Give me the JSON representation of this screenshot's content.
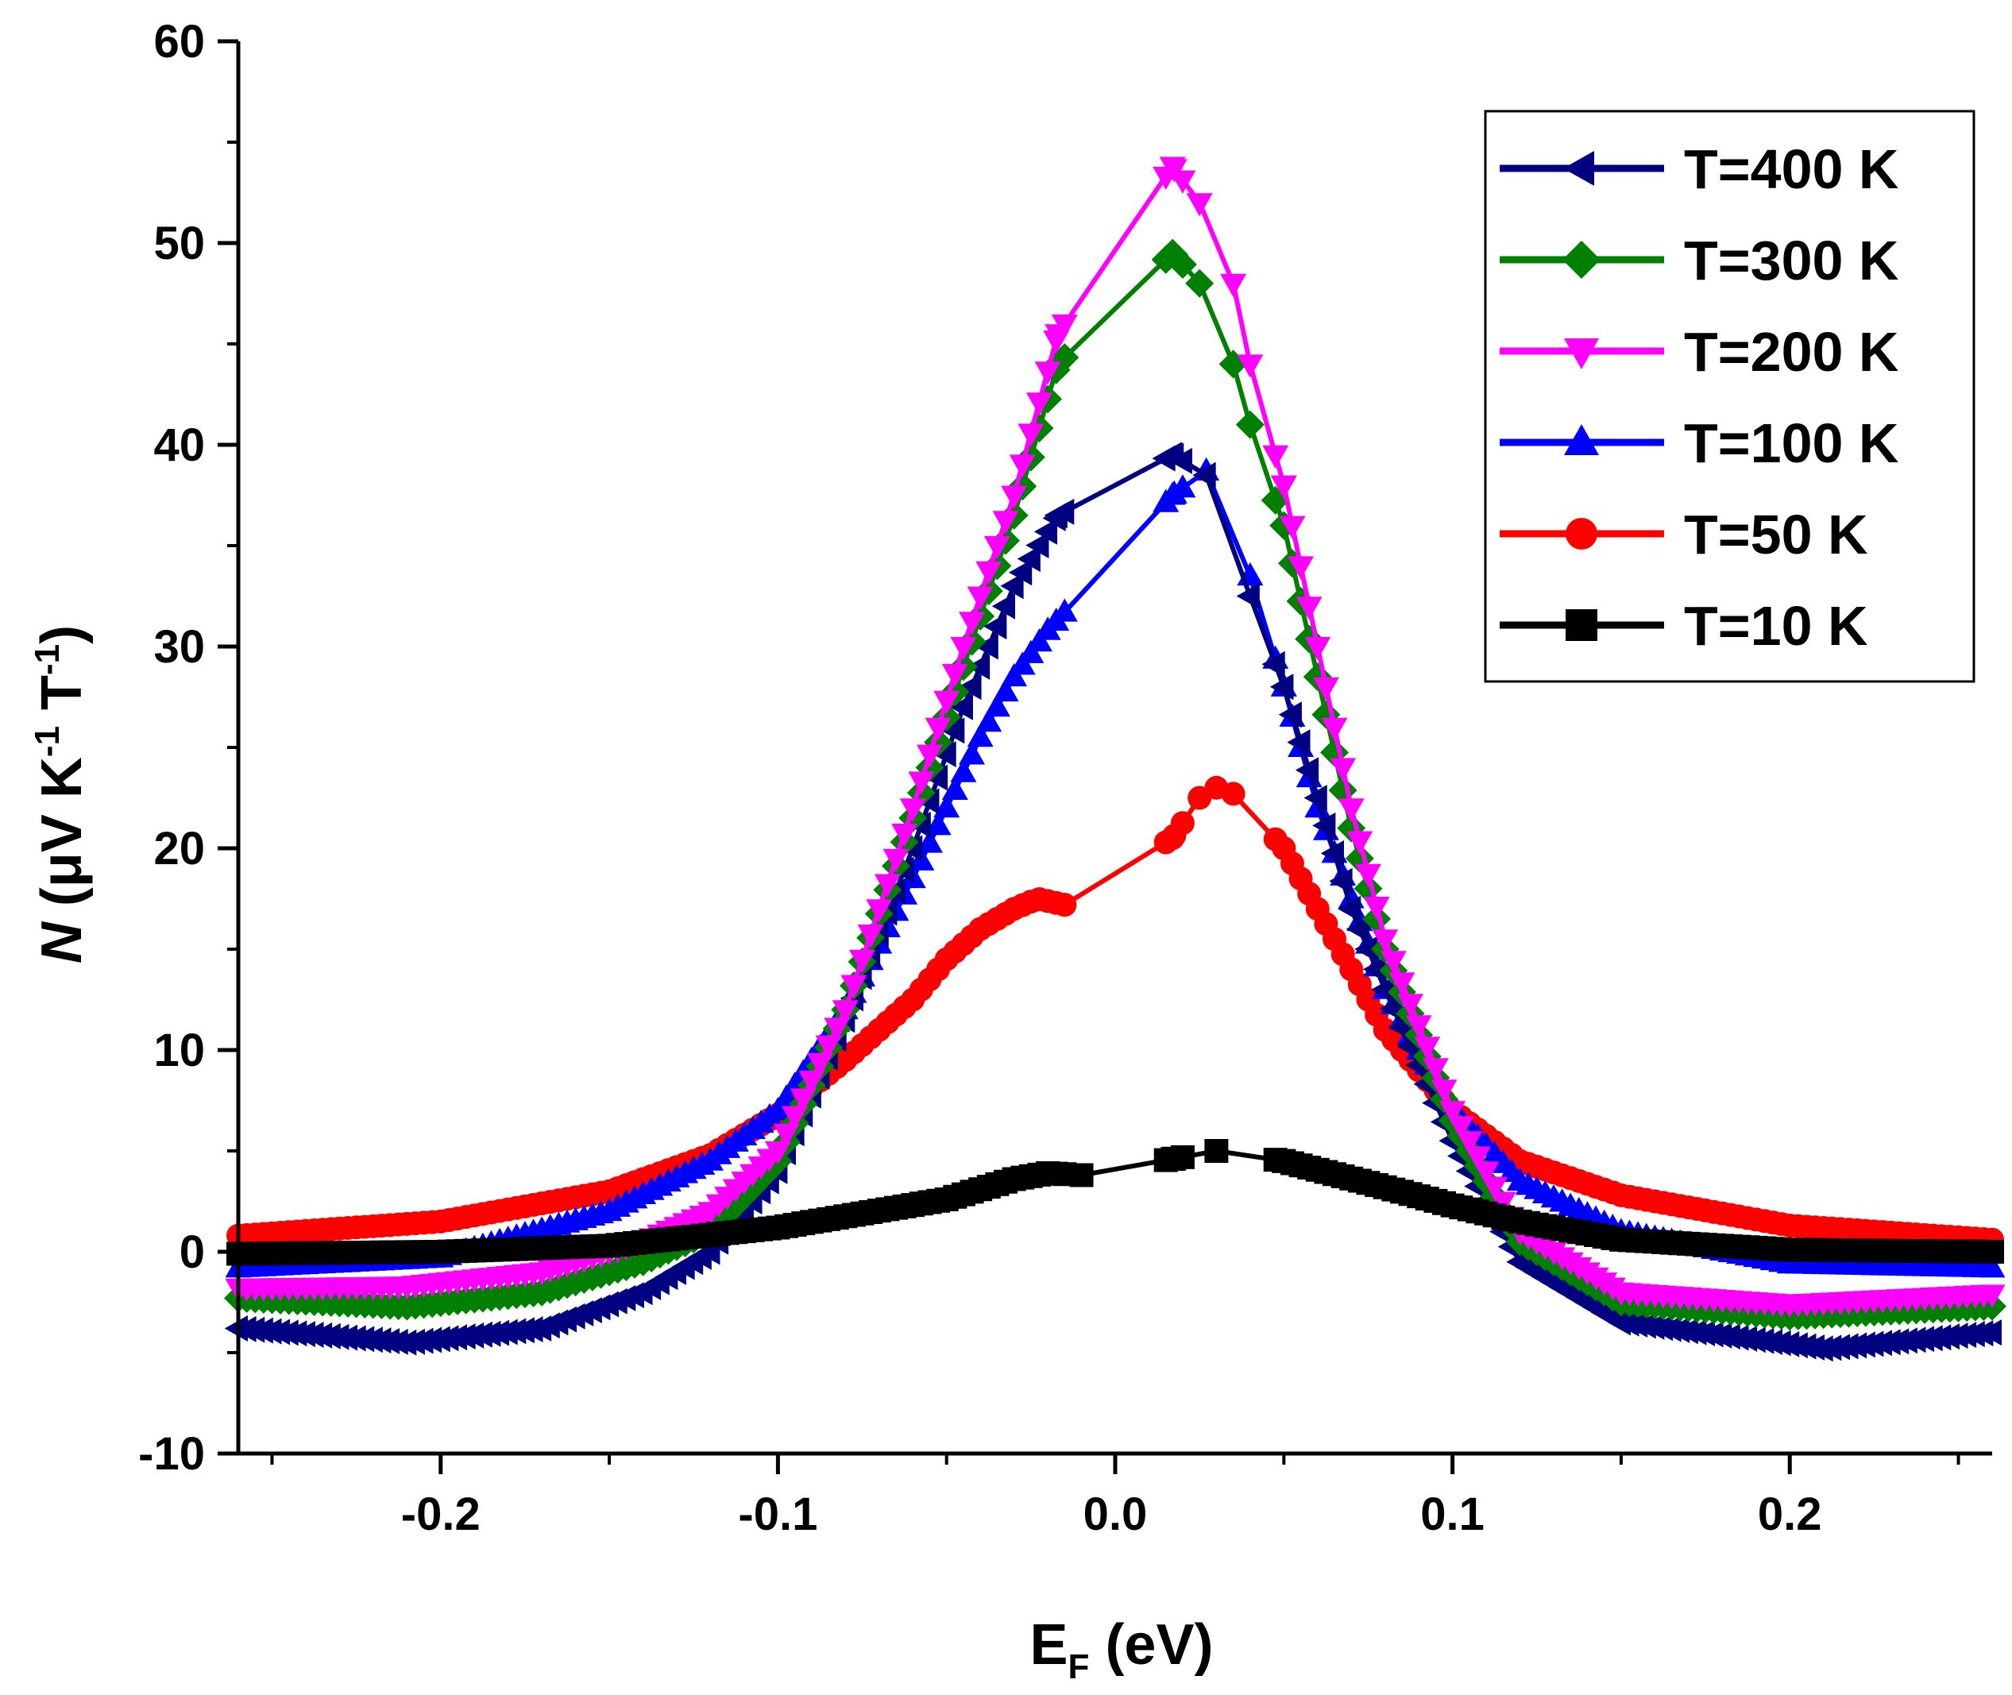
{
  "chart_data": {
    "type": "line",
    "title": "",
    "xlabel": {
      "main": "E",
      "sub": "F",
      "rest": " (eV)"
    },
    "ylabel": {
      "italic": "N",
      "unit_a": " (μV K",
      "sup1": "-1",
      "unit_b": " T",
      "sup2": "-1",
      "close": ")"
    },
    "xlim": [
      -0.26,
      0.26
    ],
    "ylim": [
      -10,
      60
    ],
    "xticks": [
      -0.2,
      -0.1,
      0.0,
      0.1,
      0.2
    ],
    "xtick_labels": [
      "-0.2",
      "-0.1",
      "0.0",
      "0.1",
      "0.2"
    ],
    "xminor": [
      -0.25,
      -0.15,
      -0.05,
      0.05,
      0.15,
      0.25
    ],
    "yticks": [
      -10,
      0,
      10,
      20,
      30,
      40,
      50,
      60
    ],
    "ytick_labels": [
      "-10",
      "0",
      "10",
      "20",
      "30",
      "40",
      "50",
      "60"
    ],
    "yminor": [
      -5,
      5,
      15,
      25,
      35,
      45,
      55
    ],
    "grid": false,
    "legend_position": "top-right",
    "peak_x": 0.017,
    "series": [
      {
        "name": "T=10 K",
        "label": "T=10 K",
        "color": "#000000",
        "marker": "square",
        "x": [
          -0.26,
          -0.2,
          -0.15,
          -0.1,
          -0.05,
          -0.03,
          -0.02,
          -0.01,
          0.017,
          0.03,
          0.05,
          0.08,
          0.1,
          0.12,
          0.15,
          0.2,
          0.26
        ],
        "y": [
          -0.1,
          0.0,
          0.3,
          1.2,
          2.6,
          3.6,
          3.9,
          3.8,
          4.6,
          5.0,
          4.5,
          3.2,
          2.3,
          1.5,
          0.6,
          0.1,
          0.0
        ]
      },
      {
        "name": "T=50 K",
        "label": "T=50 K",
        "color": "#ff0000",
        "marker": "circle",
        "x": [
          -0.26,
          -0.2,
          -0.15,
          -0.12,
          -0.1,
          -0.08,
          -0.06,
          -0.05,
          -0.04,
          -0.03,
          -0.023,
          -0.015,
          0.017,
          0.025,
          0.03,
          0.035,
          0.05,
          0.06,
          0.08,
          0.1,
          0.12,
          0.15,
          0.2,
          0.26
        ],
        "y": [
          0.8,
          1.5,
          3.0,
          4.8,
          6.8,
          9.5,
          12.5,
          14.5,
          16.0,
          17.0,
          17.5,
          17.2,
          20.5,
          22.5,
          23.0,
          22.7,
          20.0,
          17.0,
          11.0,
          7.0,
          4.5,
          2.8,
          1.3,
          0.6
        ]
      },
      {
        "name": "T=100 K",
        "label": "T=100 K",
        "color": "#0000ff",
        "marker": "triangle-up",
        "x": [
          -0.26,
          -0.2,
          -0.15,
          -0.12,
          -0.1,
          -0.08,
          -0.06,
          -0.05,
          -0.04,
          -0.03,
          -0.02,
          0.017,
          0.027,
          0.04,
          0.05,
          0.06,
          0.08,
          0.1,
          0.12,
          0.15,
          0.2,
          0.26
        ],
        "y": [
          -0.8,
          -0.3,
          2.0,
          4.5,
          7.0,
          12.0,
          18.5,
          22.0,
          25.5,
          28.5,
          30.8,
          37.5,
          38.7,
          33.5,
          28.0,
          22.0,
          13.0,
          7.0,
          3.5,
          1.0,
          -0.6,
          -0.8
        ]
      },
      {
        "name": "T=200 K",
        "label": "T=200 K",
        "color": "#ff00ff",
        "marker": "triangle-down",
        "x": [
          -0.26,
          -0.21,
          -0.17,
          -0.14,
          -0.12,
          -0.1,
          -0.08,
          -0.06,
          -0.045,
          -0.03,
          -0.017,
          0.017,
          0.025,
          0.035,
          0.04,
          0.05,
          0.06,
          0.07,
          0.08,
          0.1,
          0.12,
          0.15,
          0.2,
          0.26
        ],
        "y": [
          -1.8,
          -1.7,
          -1.0,
          0.5,
          2.0,
          5.0,
          12.0,
          22.0,
          30.0,
          37.5,
          45.5,
          53.8,
          52.0,
          48.0,
          44.0,
          38.0,
          30.0,
          22.0,
          15.5,
          7.0,
          1.0,
          -2.0,
          -2.6,
          -2.1
        ]
      },
      {
        "name": "T=300 K",
        "label": "T=300 K",
        "color": "#008000",
        "marker": "diamond",
        "x": [
          -0.26,
          -0.21,
          -0.17,
          -0.14,
          -0.12,
          -0.1,
          -0.08,
          -0.06,
          -0.045,
          -0.03,
          -0.017,
          0.017,
          0.025,
          0.035,
          0.04,
          0.05,
          0.06,
          0.07,
          0.08,
          0.1,
          0.12,
          0.15,
          0.2,
          0.26
        ],
        "y": [
          -2.3,
          -2.7,
          -2.0,
          -0.5,
          1.0,
          4.5,
          12.0,
          21.5,
          29.0,
          36.5,
          44.0,
          49.5,
          48.0,
          44.0,
          41.0,
          36.0,
          28.5,
          21.0,
          15.0,
          6.5,
          0.5,
          -2.5,
          -3.2,
          -2.7
        ]
      },
      {
        "name": "T=400 K",
        "label": "T=400 K",
        "color": "#000080",
        "marker": "triangle-left",
        "x": [
          -0.26,
          -0.21,
          -0.17,
          -0.14,
          -0.12,
          -0.1,
          -0.08,
          -0.06,
          -0.045,
          -0.03,
          -0.017,
          0.017,
          0.027,
          0.04,
          0.05,
          0.06,
          0.07,
          0.08,
          0.1,
          0.12,
          0.15,
          0.21,
          0.26
        ],
        "y": [
          -3.8,
          -4.5,
          -3.8,
          -2.0,
          0.0,
          4.0,
          11.5,
          20.0,
          27.0,
          33.0,
          36.5,
          39.5,
          38.5,
          32.5,
          28.0,
          22.5,
          17.0,
          13.0,
          5.5,
          -0.5,
          -3.5,
          -4.8,
          -4.0
        ]
      }
    ],
    "legend_order": [
      "T=400 K",
      "T=300 K",
      "T=200 K",
      "T=100 K",
      "T=50 K",
      "T=10 K"
    ]
  }
}
